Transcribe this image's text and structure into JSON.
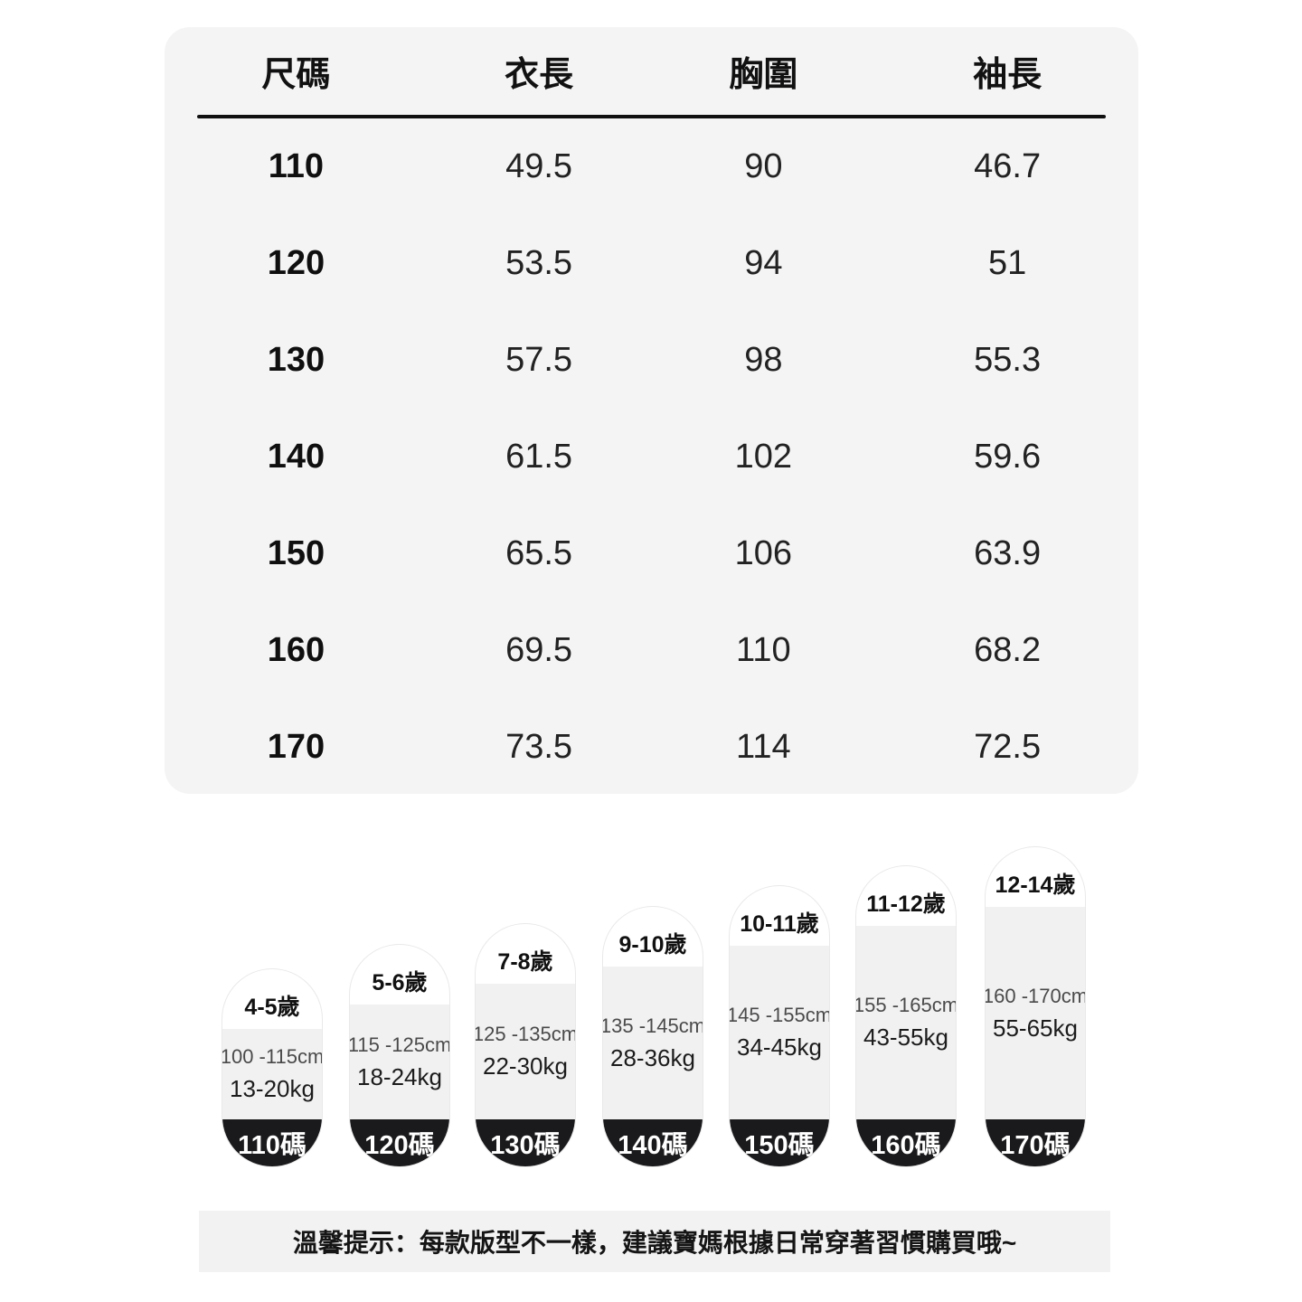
{
  "table": {
    "headers": [
      "尺碼",
      "衣長",
      "胸圍",
      "袖長"
    ],
    "rows": [
      [
        "110",
        "49.5",
        "90",
        "46.7"
      ],
      [
        "120",
        "53.5",
        "94",
        "51"
      ],
      [
        "130",
        "57.5",
        "98",
        "55.3"
      ],
      [
        "140",
        "61.5",
        "102",
        "59.6"
      ],
      [
        "150",
        "65.5",
        "106",
        "63.9"
      ],
      [
        "160",
        "69.5",
        "110",
        "68.2"
      ],
      [
        "170",
        "73.5",
        "114",
        "72.5"
      ]
    ]
  },
  "capsules": [
    {
      "age": "4-5歲",
      "height_range": "100 -115cm",
      "weight_range": "13-20kg",
      "size": "110碼"
    },
    {
      "age": "5-6歲",
      "height_range": "115 -125cm",
      "weight_range": "18-24kg",
      "size": "120碼"
    },
    {
      "age": "7-8歲",
      "height_range": "125 -135cm",
      "weight_range": "22-30kg",
      "size": "130碼"
    },
    {
      "age": "9-10歲",
      "height_range": "135 -145cm",
      "weight_range": "28-36kg",
      "size": "140碼"
    },
    {
      "age": "10-11歲",
      "height_range": "145 -155cm",
      "weight_range": "34-45kg",
      "size": "150碼"
    },
    {
      "age": "11-12歲",
      "height_range": "155 -165cm",
      "weight_range": "43-55kg",
      "size": "160碼"
    },
    {
      "age": "12-14歲",
      "height_range": "160 -170cm",
      "weight_range": "55-65kg",
      "size": "170碼"
    }
  ],
  "note": "溫馨提示：每款版型不一樣，建議寶媽根據日常穿著習慣購買哦~",
  "colors": {
    "panel_bg": "#f4f4f5",
    "capsule_mid_bg": "#f1f1f2",
    "capsule_dark_bg": "#1a1a1c",
    "note_bg": "#f2f2f2",
    "divider": "#101010"
  }
}
